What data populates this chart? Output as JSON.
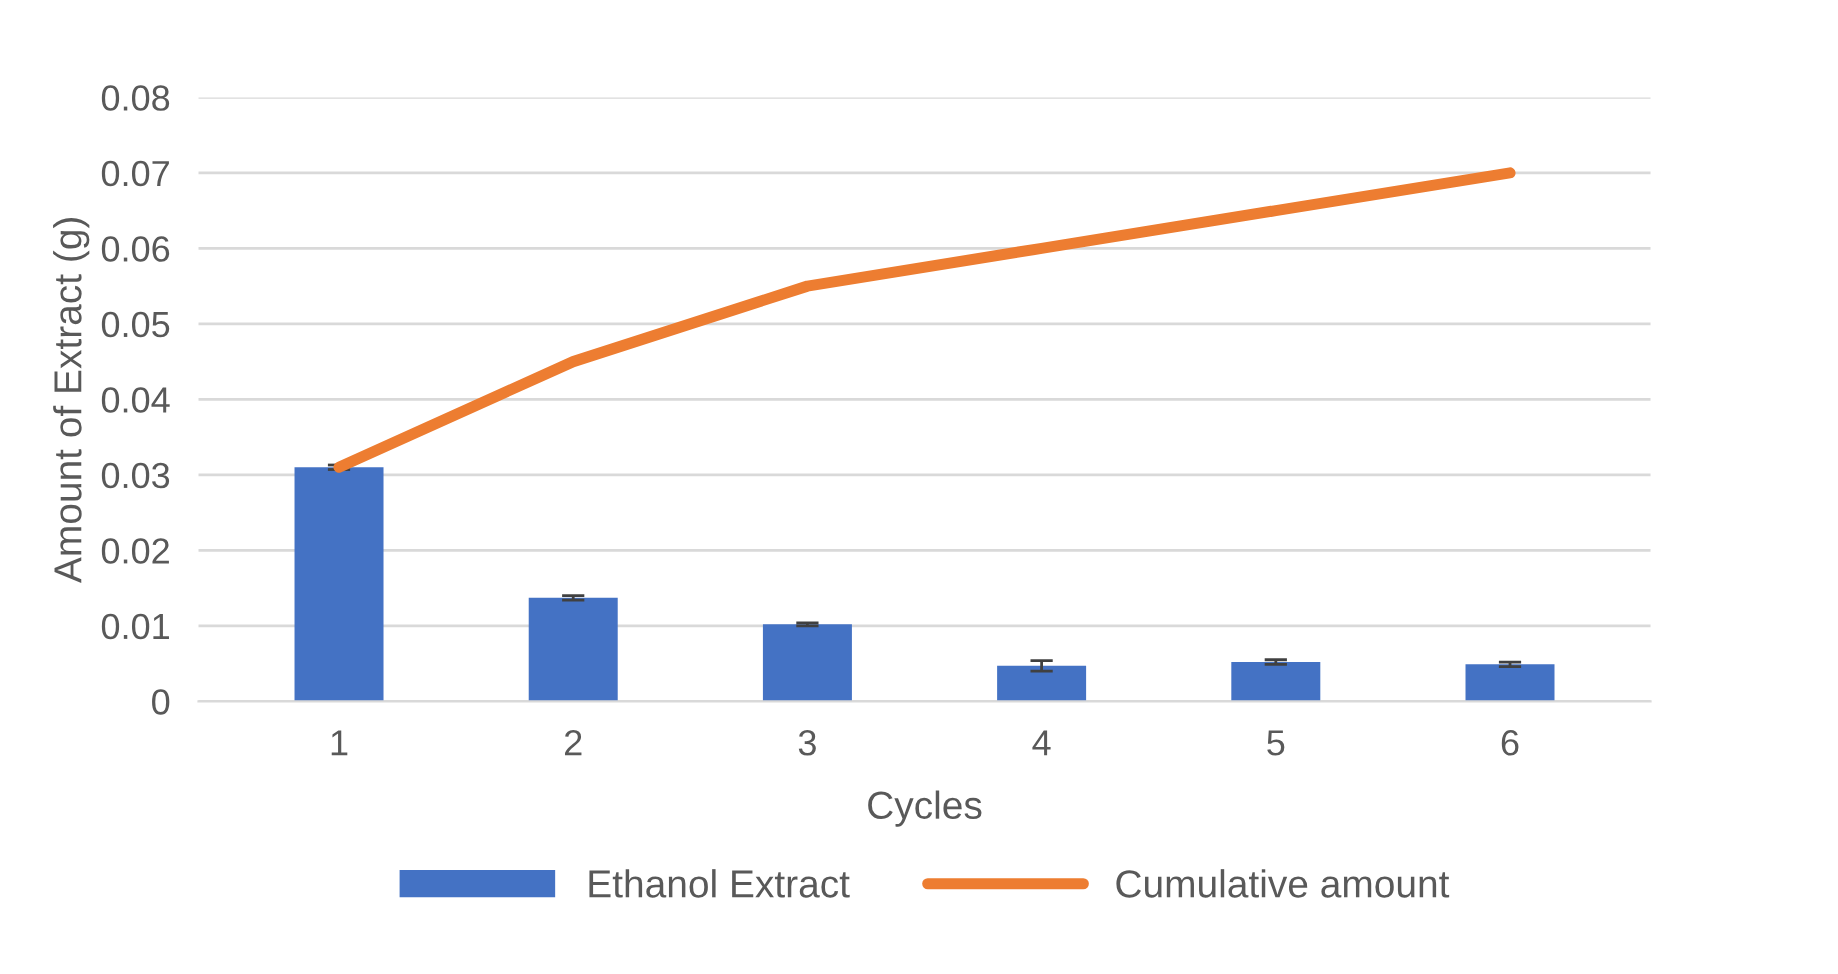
{
  "chart_data": {
    "type": "bar",
    "xlabel": "Cycles",
    "ylabel": "Amount of Extract (g)",
    "categories": [
      "1",
      "2",
      "3",
      "4",
      "5",
      "6"
    ],
    "series": [
      {
        "name": "Ethanol Extract",
        "color": "#4472c4",
        "values": [
          0.031,
          0.0137,
          0.0102,
          0.0047,
          0.0052,
          0.0049
        ],
        "errors": [
          0.0003,
          0.0003,
          0.0002,
          0.0007,
          0.0003,
          0.0003
        ]
      },
      {
        "name": "Cumulative amount",
        "type": "line",
        "color": "#ed7d31",
        "values": [
          0.031,
          0.045,
          0.055,
          0.06,
          0.065,
          0.07
        ]
      }
    ],
    "ylim": [
      0,
      0.08
    ],
    "yticks": [
      0,
      0.01,
      0.02,
      0.03,
      0.04,
      0.05,
      0.06,
      0.07,
      0.08
    ],
    "grid": "y",
    "legend": "bottom",
    "marker": "none",
    "line_style": "solid"
  }
}
